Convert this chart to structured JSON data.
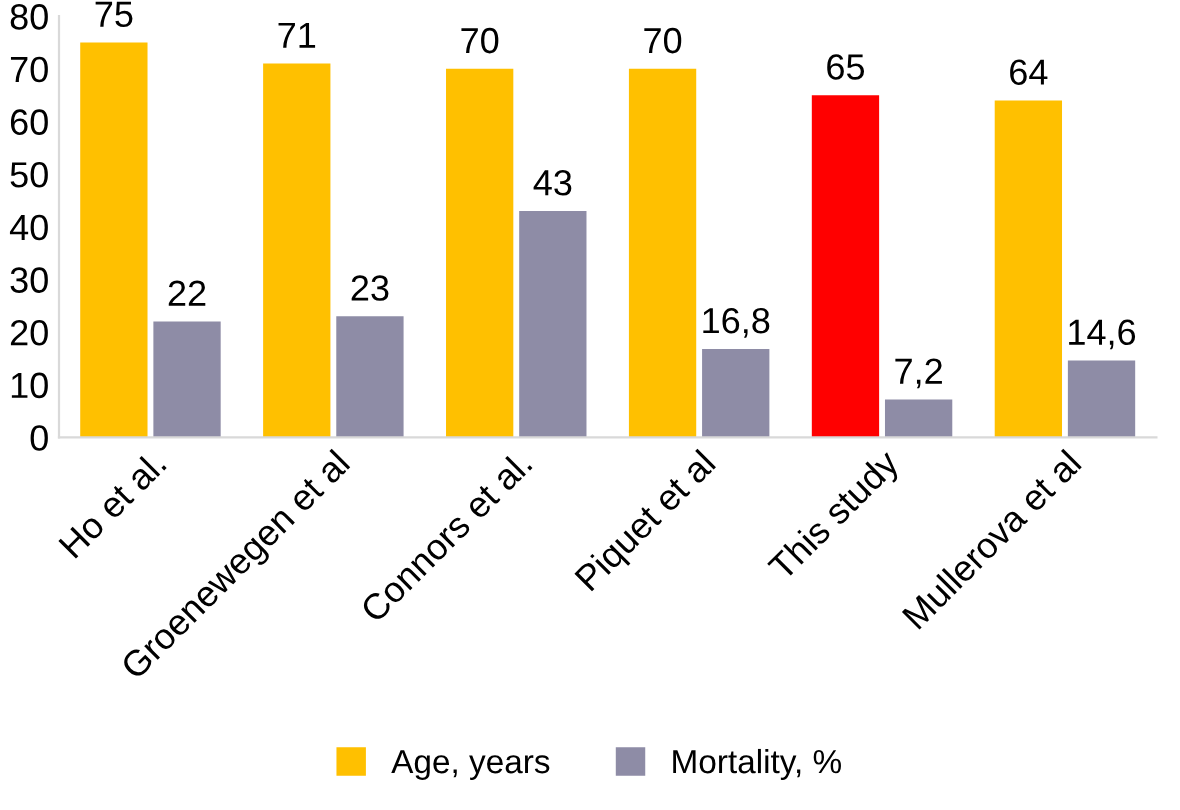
{
  "chart_data": {
    "type": "bar",
    "categories": [
      "Ho et al.",
      "Groenewegen et al",
      "Connors et al.",
      "Piquet et al",
      "This study",
      "Mullerova et al"
    ],
    "series": [
      {
        "name": "Age, years",
        "color": "#ffc000",
        "colors": [
          "#ffc000",
          "#ffc000",
          "#ffc000",
          "#ffc000",
          "#ff0000",
          "#ffc000"
        ],
        "values": [
          75,
          71,
          70,
          70,
          65,
          64
        ],
        "value_labels": [
          "75",
          "71",
          "70",
          "70",
          "65",
          "64"
        ]
      },
      {
        "name": "Mortality, %",
        "color": "#8e8ca6",
        "values": [
          22,
          23,
          43,
          16.8,
          7.2,
          14.6
        ],
        "value_labels": [
          "22",
          "23",
          "43",
          "16,8",
          "7,2",
          "14,6"
        ]
      }
    ],
    "ylim": [
      0,
      80
    ],
    "yticks": [
      0,
      10,
      20,
      30,
      40,
      50,
      60,
      70,
      80
    ],
    "grid": false,
    "legend": "bottom"
  }
}
